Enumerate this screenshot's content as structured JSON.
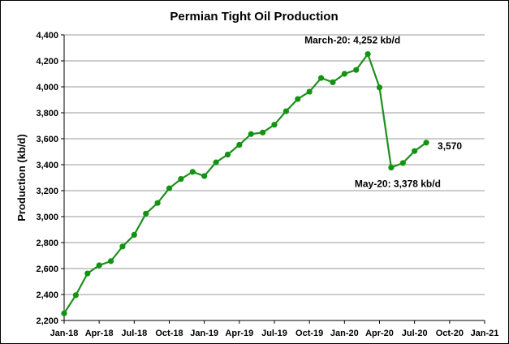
{
  "chart_data": {
    "type": "line",
    "title": "Permian Tight Oil Production",
    "xlabel": "",
    "ylabel": "Production (kb/d)",
    "ylim": [
      2200,
      4400
    ],
    "yticks": [
      2200,
      2400,
      2600,
      2800,
      3000,
      3200,
      3400,
      3600,
      3800,
      4000,
      4200,
      4400
    ],
    "ytick_labels": [
      "2,200",
      "2,400",
      "2,600",
      "2,800",
      "3,000",
      "3,200",
      "3,400",
      "3,600",
      "3,800",
      "4,000",
      "4,200",
      "4,400"
    ],
    "xlim": [
      "2018-01",
      "2021-01"
    ],
    "xticks": [
      "2018-01",
      "2018-04",
      "2018-07",
      "2018-10",
      "2019-01",
      "2019-04",
      "2019-07",
      "2019-10",
      "2020-01",
      "2020-04",
      "2020-07",
      "2020-10",
      "2021-01"
    ],
    "xtick_labels": [
      "Jan-18",
      "Apr-18",
      "Jul-18",
      "Oct-18",
      "Jan-19",
      "Apr-19",
      "Jul-19",
      "Oct-19",
      "Jan-20",
      "Apr-20",
      "Jul-20",
      "Oct-20",
      "Jan-21"
    ],
    "grid": "horizontal",
    "legend": "none",
    "series": [
      {
        "color": "#1e8f1e",
        "x": [
          "2018-01",
          "2018-02",
          "2018-03",
          "2018-04",
          "2018-05",
          "2018-06",
          "2018-07",
          "2018-08",
          "2018-09",
          "2018-10",
          "2018-11",
          "2018-12",
          "2019-01",
          "2019-02",
          "2019-03",
          "2019-04",
          "2019-05",
          "2019-06",
          "2019-07",
          "2019-08",
          "2019-09",
          "2019-10",
          "2019-11",
          "2019-12",
          "2020-01",
          "2020-02",
          "2020-03",
          "2020-04",
          "2020-05",
          "2020-06",
          "2020-07",
          "2020-08"
        ],
        "values": [
          2255,
          2395,
          2562,
          2625,
          2657,
          2770,
          2860,
          3023,
          3105,
          3218,
          3290,
          3345,
          3313,
          3418,
          3478,
          3553,
          3636,
          3648,
          3708,
          3812,
          3906,
          3962,
          4068,
          4035,
          4100,
          4130,
          4252,
          3995,
          3378,
          3413,
          3505,
          3570
        ]
      }
    ],
    "annotations": [
      {
        "text": "March-20: 4,252 kb/d",
        "x": "2020-03",
        "y": 4252
      },
      {
        "text": "May-20: 3,378 kb/d",
        "x": "2020-05",
        "y": 3378
      },
      {
        "text": "3,570",
        "x": "2020-08",
        "y": 3570
      }
    ]
  }
}
